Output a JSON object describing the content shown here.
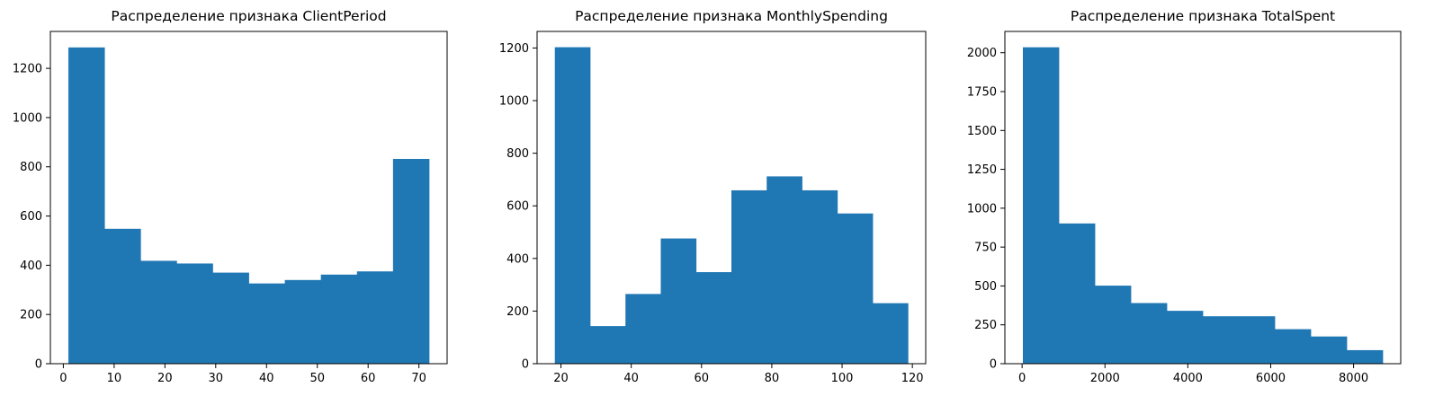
{
  "chart_data": [
    {
      "type": "bar",
      "title": "Распределение признака ClientPeriod",
      "xlabel": "",
      "ylabel": "",
      "bin_edges": [
        1,
        8.1,
        15.2,
        22.3,
        29.4,
        36.5,
        43.6,
        50.7,
        57.8,
        64.9,
        72
      ],
      "values": [
        1285,
        548,
        418,
        407,
        370,
        326,
        340,
        362,
        375,
        832
      ],
      "xlim": [
        -2.55,
        75.55
      ],
      "ylim": [
        0,
        1350
      ],
      "xticks": [
        0,
        10,
        20,
        30,
        40,
        50,
        60,
        70
      ],
      "xtick_labels": [
        "0",
        "10",
        "20",
        "30",
        "40",
        "50",
        "60",
        "70"
      ],
      "yticks": [
        0,
        200,
        400,
        600,
        800,
        1000,
        1200
      ],
      "ytick_labels": [
        "0",
        "200",
        "400",
        "600",
        "800",
        "1000",
        "1200"
      ],
      "grid": false,
      "color": "#1f77b4"
    },
    {
      "type": "bar",
      "title": "Распределение признака MonthlySpending",
      "xlabel": "",
      "ylabel": "",
      "bin_edges": [
        18.25,
        28.3,
        38.35,
        48.4,
        58.45,
        68.5,
        78.55,
        88.6,
        98.65,
        108.7,
        118.75
      ],
      "values": [
        1203,
        143,
        265,
        476,
        348,
        659,
        712,
        659,
        571,
        230
      ],
      "xlim": [
        13.2,
        123.8
      ],
      "ylim": [
        0,
        1263
      ],
      "xticks": [
        20,
        40,
        60,
        80,
        100,
        120
      ],
      "xtick_labels": [
        "20",
        "40",
        "60",
        "80",
        "100",
        "120"
      ],
      "yticks": [
        0,
        200,
        400,
        600,
        800,
        1000,
        1200
      ],
      "ytick_labels": [
        "0",
        "200",
        "400",
        "600",
        "800",
        "1000",
        "1200"
      ],
      "grid": false,
      "color": "#1f77b4"
    },
    {
      "type": "bar",
      "title": "Распределение признака TotalSpent",
      "xlabel": "",
      "ylabel": "",
      "bin_edges": [
        18.8,
        887.3,
        1755.8,
        2624.3,
        3492.8,
        4361.3,
        5229.8,
        6098.3,
        6966.8,
        7835.3,
        8703.8
      ],
      "values": [
        2035,
        902,
        502,
        390,
        340,
        305,
        305,
        222,
        175,
        87
      ],
      "xlim": [
        -415.5,
        9138
      ],
      "ylim": [
        0,
        2137
      ],
      "xticks": [
        0,
        2000,
        4000,
        6000,
        8000
      ],
      "xtick_labels": [
        "0",
        "2000",
        "4000",
        "6000",
        "8000"
      ],
      "yticks": [
        0,
        250,
        500,
        750,
        1000,
        1250,
        1500,
        1750,
        2000
      ],
      "ytick_labels": [
        "0",
        "250",
        "500",
        "750",
        "1000",
        "1250",
        "1500",
        "1750",
        "2000"
      ],
      "grid": false,
      "color": "#1f77b4"
    }
  ]
}
